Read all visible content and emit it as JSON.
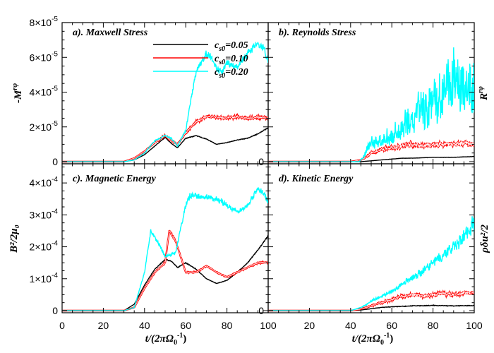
{
  "chart_data": [
    {
      "panel": "a",
      "type": "line",
      "title": "a). Maxwell Stress",
      "ylabel": "-M",
      "ylabel_sup": "rφ",
      "xlim": [
        0,
        100
      ],
      "ylim": [
        0,
        8e-05
      ],
      "yticks": [
        {
          "value": 0,
          "m": "0",
          "e": ""
        },
        {
          "value": 2e-05,
          "m": "2×10",
          "e": "-5"
        },
        {
          "value": 4e-05,
          "m": "4×10",
          "e": "-5"
        },
        {
          "value": 6e-05,
          "m": "6×10",
          "e": "-5"
        },
        {
          "value": 8e-05,
          "m": "8×10",
          "e": "-5"
        }
      ],
      "series": [
        {
          "name": "cs0=0.05",
          "color": "#000000",
          "noise": 0.015,
          "x": [
            0,
            30,
            35,
            40,
            45,
            50,
            53,
            56,
            60,
            65,
            70,
            75,
            80,
            85,
            90,
            95,
            100
          ],
          "y": [
            0,
            0,
            1e-06,
            4e-06,
            9e-06,
            1.4e-05,
            1.05e-05,
            8e-06,
            1.35e-05,
            1.5e-05,
            1.3e-05,
            1e-05,
            1.1e-05,
            1.25e-05,
            1.35e-05,
            1.6e-05,
            1.95e-05
          ]
        },
        {
          "name": "cs0=0.10",
          "color": "#ff0000",
          "noise": 0.03,
          "x": [
            0,
            30,
            35,
            40,
            45,
            50,
            53,
            56,
            60,
            65,
            70,
            75,
            80,
            85,
            90,
            95,
            100
          ],
          "y": [
            0,
            0,
            2e-06,
            6e-06,
            1.1e-05,
            1.5e-05,
            1.2e-05,
            1e-05,
            1.65e-05,
            2.3e-05,
            2.6e-05,
            2.55e-05,
            2.5e-05,
            2.6e-05,
            2.5e-05,
            2.55e-05,
            2.5e-05
          ]
        },
        {
          "name": "cs0=0.20",
          "color": "#00ffff",
          "noise": 0.04,
          "x": [
            0,
            30,
            35,
            40,
            45,
            50,
            53,
            56,
            60,
            62,
            65,
            70,
            72,
            75,
            78,
            80,
            85,
            90,
            95,
            98,
            100
          ],
          "y": [
            0,
            0,
            1e-06,
            5e-06,
            1.2e-05,
            1.5e-05,
            1.35e-05,
            9e-06,
            1.8e-05,
            3.2e-05,
            5.2e-05,
            6.2e-05,
            6.1e-05,
            5.3e-05,
            5.2e-05,
            5.7e-05,
            5.4e-05,
            6.2e-05,
            6.8e-05,
            6.5e-05,
            5.7e-05
          ]
        }
      ]
    },
    {
      "panel": "b",
      "type": "line",
      "title": "b). Reynolds Stress",
      "ylabel": "R",
      "ylabel_sup": "rφ",
      "xlim": [
        0,
        100
      ],
      "ylim": [
        0,
        8e-05
      ],
      "yticks": [],
      "series": [
        {
          "name": "cs0=0.05",
          "color": "#000000",
          "noise": 0.04,
          "x": [
            0,
            40,
            45,
            50,
            55,
            60,
            65,
            70,
            80,
            90,
            100
          ],
          "y": [
            0,
            0,
            0,
            5e-07,
            1e-06,
            1.5e-06,
            2e-06,
            2e-06,
            2.5e-06,
            2.5e-06,
            3e-06
          ]
        },
        {
          "name": "cs0=0.10",
          "color": "#ff0000",
          "noise": 0.18,
          "x": [
            0,
            40,
            45,
            48,
            50,
            55,
            60,
            65,
            70,
            75,
            80,
            85,
            90,
            95,
            100
          ],
          "y": [
            0,
            0,
            1e-06,
            3e-06,
            5e-06,
            7e-06,
            8e-06,
            9e-06,
            1e-05,
            9e-06,
            9.5e-06,
            1e-05,
            1e-05,
            1.05e-05,
            1e-05
          ]
        },
        {
          "name": "cs0=0.20",
          "color": "#00ffff",
          "noise": 0.45,
          "x": [
            0,
            44,
            46,
            48,
            50,
            55,
            60,
            65,
            70,
            75,
            80,
            85,
            90,
            95,
            98,
            100
          ],
          "y": [
            0,
            0,
            2e-06,
            7e-06,
            1e-05,
            1.2e-05,
            1.4e-05,
            1.8e-05,
            2.5e-05,
            3e-05,
            3.5e-05,
            4e-05,
            4.5e-05,
            4.5e-05,
            4.2e-05,
            4.3e-05
          ]
        }
      ]
    },
    {
      "panel": "c",
      "type": "line",
      "title": "c). Magnetic Energy",
      "ylabel": "B²/2μ₀",
      "ylabel_sup": "",
      "xlim": [
        0,
        100
      ],
      "ylim": [
        0,
        0.00046
      ],
      "yticks": [
        {
          "value": 0,
          "m": "0",
          "e": ""
        },
        {
          "value": 0.0001,
          "m": "1×10",
          "e": "-4"
        },
        {
          "value": 0.0002,
          "m": "2×10",
          "e": "-4"
        },
        {
          "value": 0.0003,
          "m": "3×10",
          "e": "-4"
        },
        {
          "value": 0.0004,
          "m": "4×10",
          "e": "-4"
        }
      ],
      "series": [
        {
          "name": "cs0=0.05",
          "color": "#000000",
          "noise": 0.01,
          "x": [
            0,
            30,
            35,
            40,
            45,
            50,
            53,
            56,
            60,
            65,
            70,
            75,
            80,
            85,
            90,
            95,
            100
          ],
          "y": [
            0,
            0,
            2e-05,
            8e-05,
            0.00013,
            0.00016,
            0.000155,
            0.000135,
            0.00015,
            0.00013,
            0.0001,
            8.5e-05,
            9.5e-05,
            0.00012,
            0.00015,
            0.00019,
            0.000235
          ]
        },
        {
          "name": "cs0=0.10",
          "color": "#ff0000",
          "noise": 0.015,
          "x": [
            0,
            30,
            35,
            40,
            45,
            50,
            52,
            55,
            60,
            65,
            70,
            75,
            80,
            85,
            90,
            95,
            100
          ],
          "y": [
            0,
            0,
            1e-05,
            7e-05,
            0.00012,
            0.00015,
            0.00025,
            0.00022,
            0.00012,
            0.00012,
            0.00014,
            0.00012,
            0.000105,
            0.00012,
            0.000135,
            0.00015,
            0.00015
          ]
        },
        {
          "name": "cs0=0.20",
          "color": "#00ffff",
          "noise": 0.03,
          "x": [
            0,
            30,
            35,
            40,
            43,
            46,
            50,
            55,
            60,
            62,
            65,
            70,
            75,
            80,
            85,
            90,
            95,
            98,
            100
          ],
          "y": [
            0,
            0,
            1e-05,
            0.00012,
            0.00025,
            0.00022,
            0.00017,
            0.00018,
            0.00033,
            0.00036,
            0.00036,
            0.000355,
            0.00035,
            0.00033,
            0.00031,
            0.00033,
            0.00038,
            0.00037,
            0.000335
          ]
        }
      ]
    },
    {
      "panel": "d",
      "type": "line",
      "title": "d). Kinetic Energy",
      "ylabel": "ρδu²/2",
      "ylabel_sup": "",
      "xlim": [
        0,
        100
      ],
      "ylim": [
        0,
        0.00046
      ],
      "yticks": [],
      "series": [
        {
          "name": "cs0=0.05",
          "color": "#000000",
          "noise": 0.08,
          "x": [
            0,
            40,
            45,
            50,
            55,
            60,
            70,
            80,
            90,
            100
          ],
          "y": [
            0,
            0,
            2e-06,
            6e-06,
            1e-05,
            1.2e-05,
            1.5e-05,
            1.6e-05,
            1.5e-05,
            1.6e-05
          ]
        },
        {
          "name": "cs0=0.10",
          "color": "#ff0000",
          "noise": 0.12,
          "x": [
            0,
            40,
            45,
            50,
            55,
            60,
            65,
            70,
            75,
            80,
            85,
            90,
            95,
            100
          ],
          "y": [
            0,
            0,
            5e-06,
            1.5e-05,
            2.5e-05,
            3.5e-05,
            4.5e-05,
            5e-05,
            4.5e-05,
            5e-05,
            5.5e-05,
            5e-05,
            5.5e-05,
            5.2e-05
          ]
        },
        {
          "name": "cs0=0.20",
          "color": "#00ffff",
          "noise": 0.12,
          "x": [
            0,
            40,
            45,
            48,
            50,
            55,
            60,
            65,
            70,
            75,
            80,
            85,
            90,
            95,
            98,
            100
          ],
          "y": [
            0,
            0,
            1e-05,
            2e-05,
            3e-05,
            4.5e-05,
            6e-05,
            8e-05,
            0.000105,
            0.000125,
            0.00015,
            0.000175,
            0.0002,
            0.00023,
            0.00026,
            0.00027
          ]
        }
      ]
    }
  ],
  "legend": {
    "items": [
      {
        "label": "c",
        "sub": "s0",
        "value": "=0.05",
        "color": "#000000"
      },
      {
        "label": "c",
        "sub": "s0",
        "value": "=0.10",
        "color": "#ff0000"
      },
      {
        "label": "c",
        "sub": "s0",
        "value": "=0.20",
        "color": "#00ffff"
      }
    ]
  },
  "xaxis": {
    "ticks": [
      "0",
      "20",
      "40",
      "60",
      "80",
      "100"
    ],
    "label_left": "t/(2πΩ",
    "label_sub": "0",
    "label_sup": "-1",
    "label_right": ")"
  }
}
